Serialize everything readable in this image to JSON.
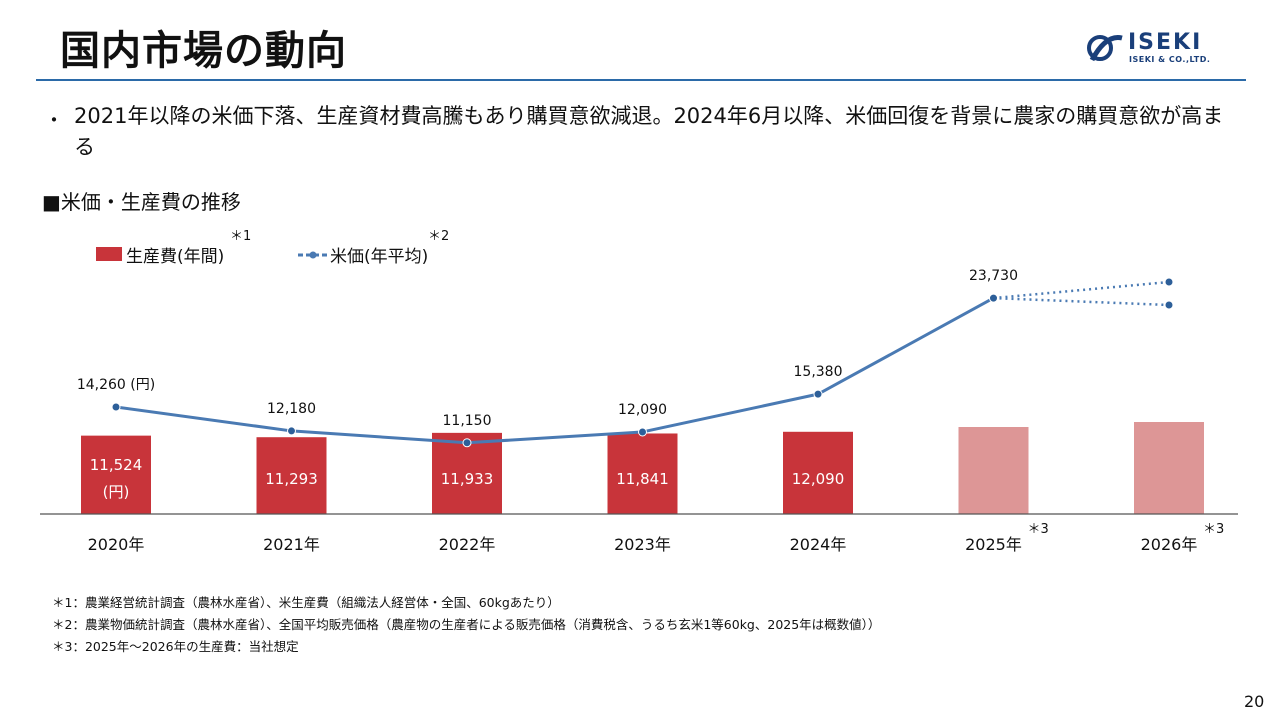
{
  "header": {
    "title": "国内市場の動向",
    "logo_text": "ISEKI",
    "logo_subtext": "ISEKI & CO.,LTD."
  },
  "bullet": {
    "mark": "・",
    "text": "2021年以降の米価下落、生産資材費高騰もあり購買意欲減退。2024年6月以降、米価回復を背景に農家の購買意欲が高まる"
  },
  "section_title": "■米価・生産費の推移",
  "chart_data": {
    "type": "bar+line",
    "categories": [
      "2020年",
      "2021年",
      "2022年",
      "2023年",
      "2024年",
      "2025年",
      "2026年"
    ],
    "category_notes": [
      "",
      "",
      "",
      "",
      "",
      "＊3",
      "＊3"
    ],
    "legend": [
      {
        "label": "生産費(年間)",
        "note": "＊1",
        "color": "#c8343a"
      },
      {
        "label": "米価(年平均)",
        "note": "＊2",
        "color": "#4a7ab3"
      }
    ],
    "bars": {
      "name": "生産費(年間)",
      "values": [
        11524,
        11293,
        11933,
        11841,
        12090,
        null,
        null
      ],
      "labels": [
        "11,524",
        "11,293",
        "11,933",
        "11,841",
        "12,090",
        "",
        ""
      ],
      "estimated": [
        false,
        false,
        false,
        false,
        false,
        true,
        true
      ],
      "unit_label": "(円)",
      "color": "#c8343a",
      "estimated_color": "#dd9696"
    },
    "line": {
      "name": "米価(年平均)",
      "values": [
        14260,
        12180,
        11150,
        12090,
        15380,
        23730
      ],
      "labels": [
        "14,260 (円)",
        "12,180",
        "11,150",
        "12,090",
        "15,380",
        "23,730"
      ],
      "projection": {
        "from_index": 5,
        "to_index": 6,
        "note": "upper and lower projection, unlabeled"
      },
      "color": "#4a7ab3"
    }
  },
  "footnotes": [
    "＊1：農業経営統計調査（農林水産省）、米生産費（組織法人経営体・全国、60kgあたり）",
    "＊2：農業物価統計調査（農林水産省）、全国平均販売価格（農産物の生産者による販売価格（消費税含、うるち玄米1等60kg、2025年は概数値））",
    "＊3：2025年〜2026年の生産費：当社想定"
  ],
  "page_number": "20"
}
